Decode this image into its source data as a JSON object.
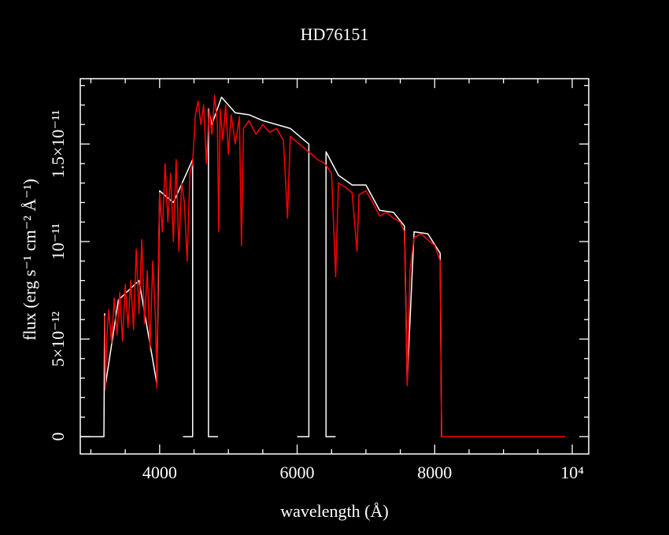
{
  "chart_data": {
    "type": "line",
    "title": "HD76151",
    "x_label": "wavelength (Å)",
    "y_label": "flux (erg s⁻¹ cm⁻² Å⁻¹)",
    "xlim": [
      2846,
      10240
    ],
    "ylim": [
      -8.9e-13,
      1.835e-11
    ],
    "xticks": [
      4000,
      6000,
      8000,
      {
        "value": 10000,
        "label": "10⁴"
      }
    ],
    "yticks": [
      0,
      {
        "value": 5e-12,
        "label": "5×10⁻¹²"
      },
      {
        "value": 1e-11,
        "label": "10⁻¹¹"
      },
      {
        "value": 1.5e-11,
        "label": "1.5×10⁻¹¹"
      }
    ],
    "xminorticks": [
      3000,
      3500,
      4500,
      5000,
      5500,
      6500,
      7000,
      7500,
      8500,
      9000,
      9500
    ],
    "yminorticks": [
      1e-12,
      2e-12,
      3e-12,
      4e-12,
      6e-12,
      7e-12,
      8e-12,
      9e-12,
      1.1e-11,
      1.2e-11,
      1.3e-11,
      1.4e-11,
      1.6e-11,
      1.7e-11,
      1.8e-11
    ],
    "series": [
      {
        "color": "#ffffff",
        "x": [
          2850,
          3190,
          3200,
          3210,
          3400,
          3700,
          3960,
          4000,
          4200,
          4480,
          4480,
          4340,
          null,
          4850,
          4710,
          4710,
          4760,
          4900,
          5100,
          5300,
          5500,
          5700,
          5900,
          6100,
          6170,
          6170,
          6000,
          null,
          6560,
          6420,
          6420,
          6600,
          6800,
          7000,
          7200,
          7400,
          7560,
          7600,
          7700,
          7900,
          8080,
          8100
        ],
        "values": [
          0,
          0,
          6.3e-12,
          2.6e-12,
          7e-12,
          8e-12,
          2.7e-12,
          1.26e-11,
          1.2e-11,
          1.42e-11,
          0,
          0,
          null,
          0,
          0,
          1.68e-11,
          1.6e-11,
          1.74e-11,
          1.66e-11,
          1.65e-11,
          1.62e-11,
          1.6e-11,
          1.58e-11,
          1.52e-11,
          1.5e-11,
          0,
          0,
          null,
          0,
          0,
          1.46e-11,
          1.34e-11,
          1.29e-11,
          1.29e-11,
          1.16e-11,
          1.15e-11,
          1.08e-11,
          2.8e-12,
          1.05e-11,
          1.04e-11,
          9.4e-12,
          0
        ]
      },
      {
        "color": "#ff0000",
        "x": [
          3200,
          3210,
          3230,
          3260,
          3300,
          3340,
          3380,
          3420,
          3460,
          3500,
          3540,
          3580,
          3620,
          3660,
          3700,
          3740,
          3780,
          3820,
          3860,
          3900,
          3940,
          3960,
          3980,
          4000,
          4040,
          4080,
          4120,
          4160,
          4200,
          4240,
          4280,
          4320,
          4360,
          4400,
          4440,
          4480,
          4520,
          4560,
          4600,
          4640,
          4680,
          4720,
          4760,
          4800,
          4840,
          4860,
          4880,
          4920,
          4960,
          5000,
          5040,
          5100,
          5160,
          5190,
          5220,
          5300,
          5400,
          5500,
          5600,
          5700,
          5800,
          5860,
          5900,
          6000,
          6100,
          6200,
          6300,
          6400,
          6500,
          6560,
          6600,
          6700,
          6800,
          6870,
          6900,
          7000,
          7100,
          7200,
          7300,
          7400,
          7500,
          7560,
          7600,
          7640,
          7700,
          7800,
          7900,
          8000,
          8080,
          8100,
          9900
        ],
        "values": [
          6.2e-12,
          2.4e-12,
          5e-12,
          6.5e-12,
          4.8e-12,
          7.1e-12,
          5.2e-12,
          7.4e-12,
          4.9e-12,
          7.8e-12,
          5.6e-12,
          8e-12,
          5.5e-12,
          9.6e-12,
          6.3e-12,
          1.01e-11,
          5.8e-12,
          8.5e-12,
          4.5e-12,
          9e-12,
          6e-12,
          2.5e-12,
          8.5e-12,
          1.25e-11,
          1.05e-11,
          1.4e-11,
          1.1e-11,
          1.35e-11,
          1e-11,
          1.42e-11,
          9.5e-12,
          1.3e-11,
          1.2e-11,
          9e-12,
          1.35e-11,
          1.4e-11,
          1.65e-11,
          1.72e-11,
          1.6e-11,
          1.7e-11,
          1.4e-11,
          1.68e-11,
          1.55e-11,
          1.75e-11,
          1.6e-11,
          1.05e-11,
          1.68e-11,
          1.52e-11,
          1.7e-11,
          1.45e-11,
          1.65e-11,
          1.5e-11,
          1.64e-11,
          9.8e-12,
          1.58e-11,
          1.62e-11,
          1.55e-11,
          1.6e-11,
          1.56e-11,
          1.58e-11,
          1.52e-11,
          1.12e-11,
          1.54e-11,
          1.51e-11,
          1.48e-11,
          1.45e-11,
          1.42e-11,
          1.4e-11,
          1.35e-11,
          8.2e-12,
          1.3e-11,
          1.28e-11,
          1.25e-11,
          9.5e-12,
          1.24e-11,
          1.26e-11,
          1.2e-11,
          1.13e-11,
          1.15e-11,
          1.12e-11,
          1.1e-11,
          1.05e-11,
          2.6e-12,
          8.5e-12,
          1.02e-11,
          1.04e-11,
          1.01e-11,
          9.8e-12,
          9e-12,
          0,
          0
        ]
      }
    ]
  }
}
